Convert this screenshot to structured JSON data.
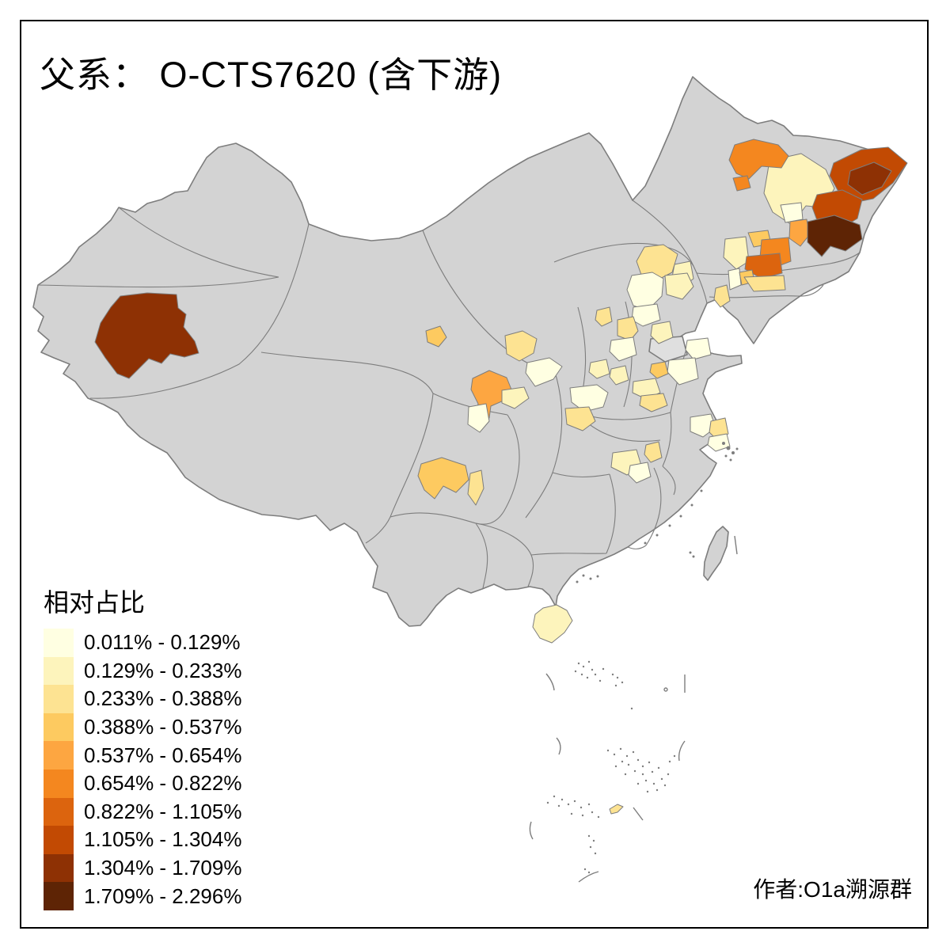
{
  "title": "父系： O-CTS7620 (含下游)",
  "attribution": "作者:O1a溯源群",
  "legend": {
    "title": "相对占比",
    "bins": [
      {
        "label": "0.011% - 0.129%",
        "color": "#FFFFE2"
      },
      {
        "label": "0.129% - 0.233%",
        "color": "#FDF4BC"
      },
      {
        "label": "0.233% - 0.388%",
        "color": "#FDE392"
      },
      {
        "label": "0.388% - 0.537%",
        "color": "#FDCA60"
      },
      {
        "label": "0.537% - 0.654%",
        "color": "#FDA641"
      },
      {
        "label": "0.654% - 0.822%",
        "color": "#F4871F"
      },
      {
        "label": "0.822% - 1.105%",
        "color": "#DC640E"
      },
      {
        "label": "1.105% - 1.304%",
        "color": "#C24A03"
      },
      {
        "label": "1.304% - 1.709%",
        "color": "#8E3104"
      },
      {
        "label": "1.709% - 2.296%",
        "color": "#5E2405"
      }
    ]
  },
  "map": {
    "base_fill": "#D3D3D3",
    "base_fill_alt": "#DFDFDF",
    "border_stroke": "#7D7D7D",
    "sea_fill": "#FFFFFF",
    "frame_color": "#000000",
    "regions": {
      "aksu": 9,
      "nenjiang": 6,
      "nehe": 6,
      "heihe": 2,
      "yichun": 8,
      "hegang": 9,
      "jiamusi": 8,
      "jixi": 10,
      "suihua": 1,
      "harbin-east": 5,
      "songyuan": 4,
      "jilin-city": 6,
      "siping": 7,
      "tongliao": 2,
      "xinmin": 4,
      "shenyang": 3,
      "panjin": 1,
      "chaoyang": 2,
      "chengde": 3,
      "qinhuangdao": 2,
      "beijing": 1,
      "baoding": 3,
      "xinzhou": 3,
      "langfang": 1,
      "tianjin": 2,
      "hebei-south": 1,
      "shanxi-a": 2,
      "shanxi-b": 2,
      "yantai": 3,
      "jinan": 4,
      "shandong-west": 1,
      "shandong-southwest": 1,
      "zhangye": 4,
      "wuwei": 3,
      "baiyin": 1,
      "lanzhou": 5,
      "dingxi": 2,
      "gannan": 1,
      "shaanxi-north": 1,
      "pingliang": 3,
      "heze": 2,
      "shangqiu": 3,
      "xichang": 4,
      "panzhihua": 3,
      "yangzhou": 1,
      "taizhou": 3,
      "shanghai": 1,
      "wuhu": 3,
      "jingzhou": 2,
      "wuhan": 1,
      "hainan": 2,
      "scs-islet": 3
    }
  }
}
